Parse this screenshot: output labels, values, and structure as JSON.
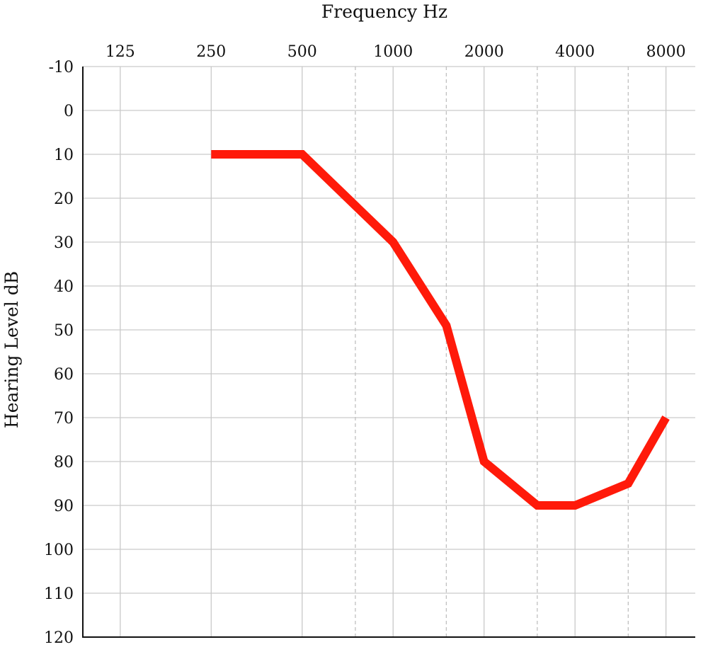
{
  "chart_data": {
    "type": "line",
    "xlabel": "Frequency Hz",
    "ylabel": "Hearing Level dB",
    "x_scale": "log2",
    "x_ticks": [
      "125",
      "250",
      "500",
      "1000",
      "2000",
      "4000",
      "8000"
    ],
    "x_tick_values": [
      125,
      250,
      500,
      1000,
      2000,
      4000,
      8000
    ],
    "x_minor_gridlines": [
      750,
      1500,
      3000,
      6000
    ],
    "xlim": [
      94,
      10000
    ],
    "y_inverted": true,
    "ylim": [
      -10,
      120
    ],
    "y_ticks": [
      -10,
      0,
      10,
      20,
      30,
      40,
      50,
      60,
      70,
      80,
      90,
      100,
      110,
      120
    ],
    "grid": true,
    "x_axis_position": "top",
    "series": [
      {
        "color": "#ff1a0a",
        "x": [
          250,
          500,
          1000,
          1500,
          2000,
          3000,
          4000,
          6000,
          8000
        ],
        "y": [
          10,
          10,
          30,
          49,
          80,
          90,
          90,
          85,
          70
        ]
      }
    ]
  }
}
